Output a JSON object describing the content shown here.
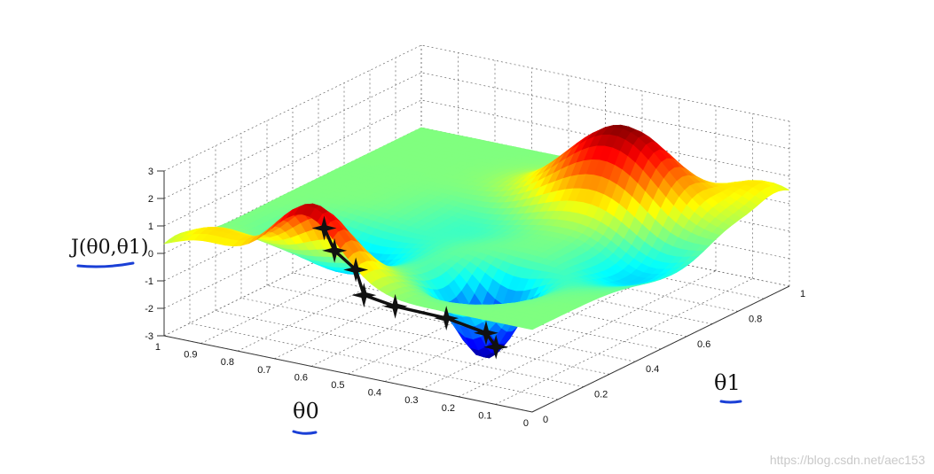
{
  "chart_data": {
    "type": "surface3d",
    "zlabel": "J(θ0,θ1)",
    "xlabel": "θ0",
    "ylabel": "θ1",
    "xlim": [
      0,
      1
    ],
    "ylim": [
      0,
      1
    ],
    "zlim": [
      -3,
      3
    ],
    "x_ticks": [
      "0",
      "0.1",
      "0.2",
      "0.3",
      "0.4",
      "0.5",
      "0.6",
      "0.7",
      "0.8",
      "0.9",
      "1"
    ],
    "y_ticks": [
      "0",
      "0.2",
      "0.4",
      "0.6",
      "0.8",
      "1"
    ],
    "z_ticks": [
      "-3",
      "-2",
      "-1",
      "0",
      "1",
      "2",
      "3"
    ],
    "colormap": "jet",
    "grid": true,
    "descent_path": [
      {
        "x": 0.6,
        "y": 0.05,
        "z": 1.8
      },
      {
        "x": 0.6,
        "y": 0.09,
        "z": 0.8
      },
      {
        "x": 0.57,
        "y": 0.13,
        "z": 0.0
      },
      {
        "x": 0.52,
        "y": 0.09,
        "z": -0.6
      },
      {
        "x": 0.47,
        "y": 0.14,
        "z": -1.1
      },
      {
        "x": 0.38,
        "y": 0.21,
        "z": -1.6
      },
      {
        "x": 0.3,
        "y": 0.25,
        "z": -2.1
      },
      {
        "x": 0.28,
        "y": 0.26,
        "z": -2.6
      }
    ]
  },
  "watermark": "https://blog.csdn.net/aec153",
  "colors": {
    "underline": "#1a3fd6",
    "path": "#111111"
  }
}
